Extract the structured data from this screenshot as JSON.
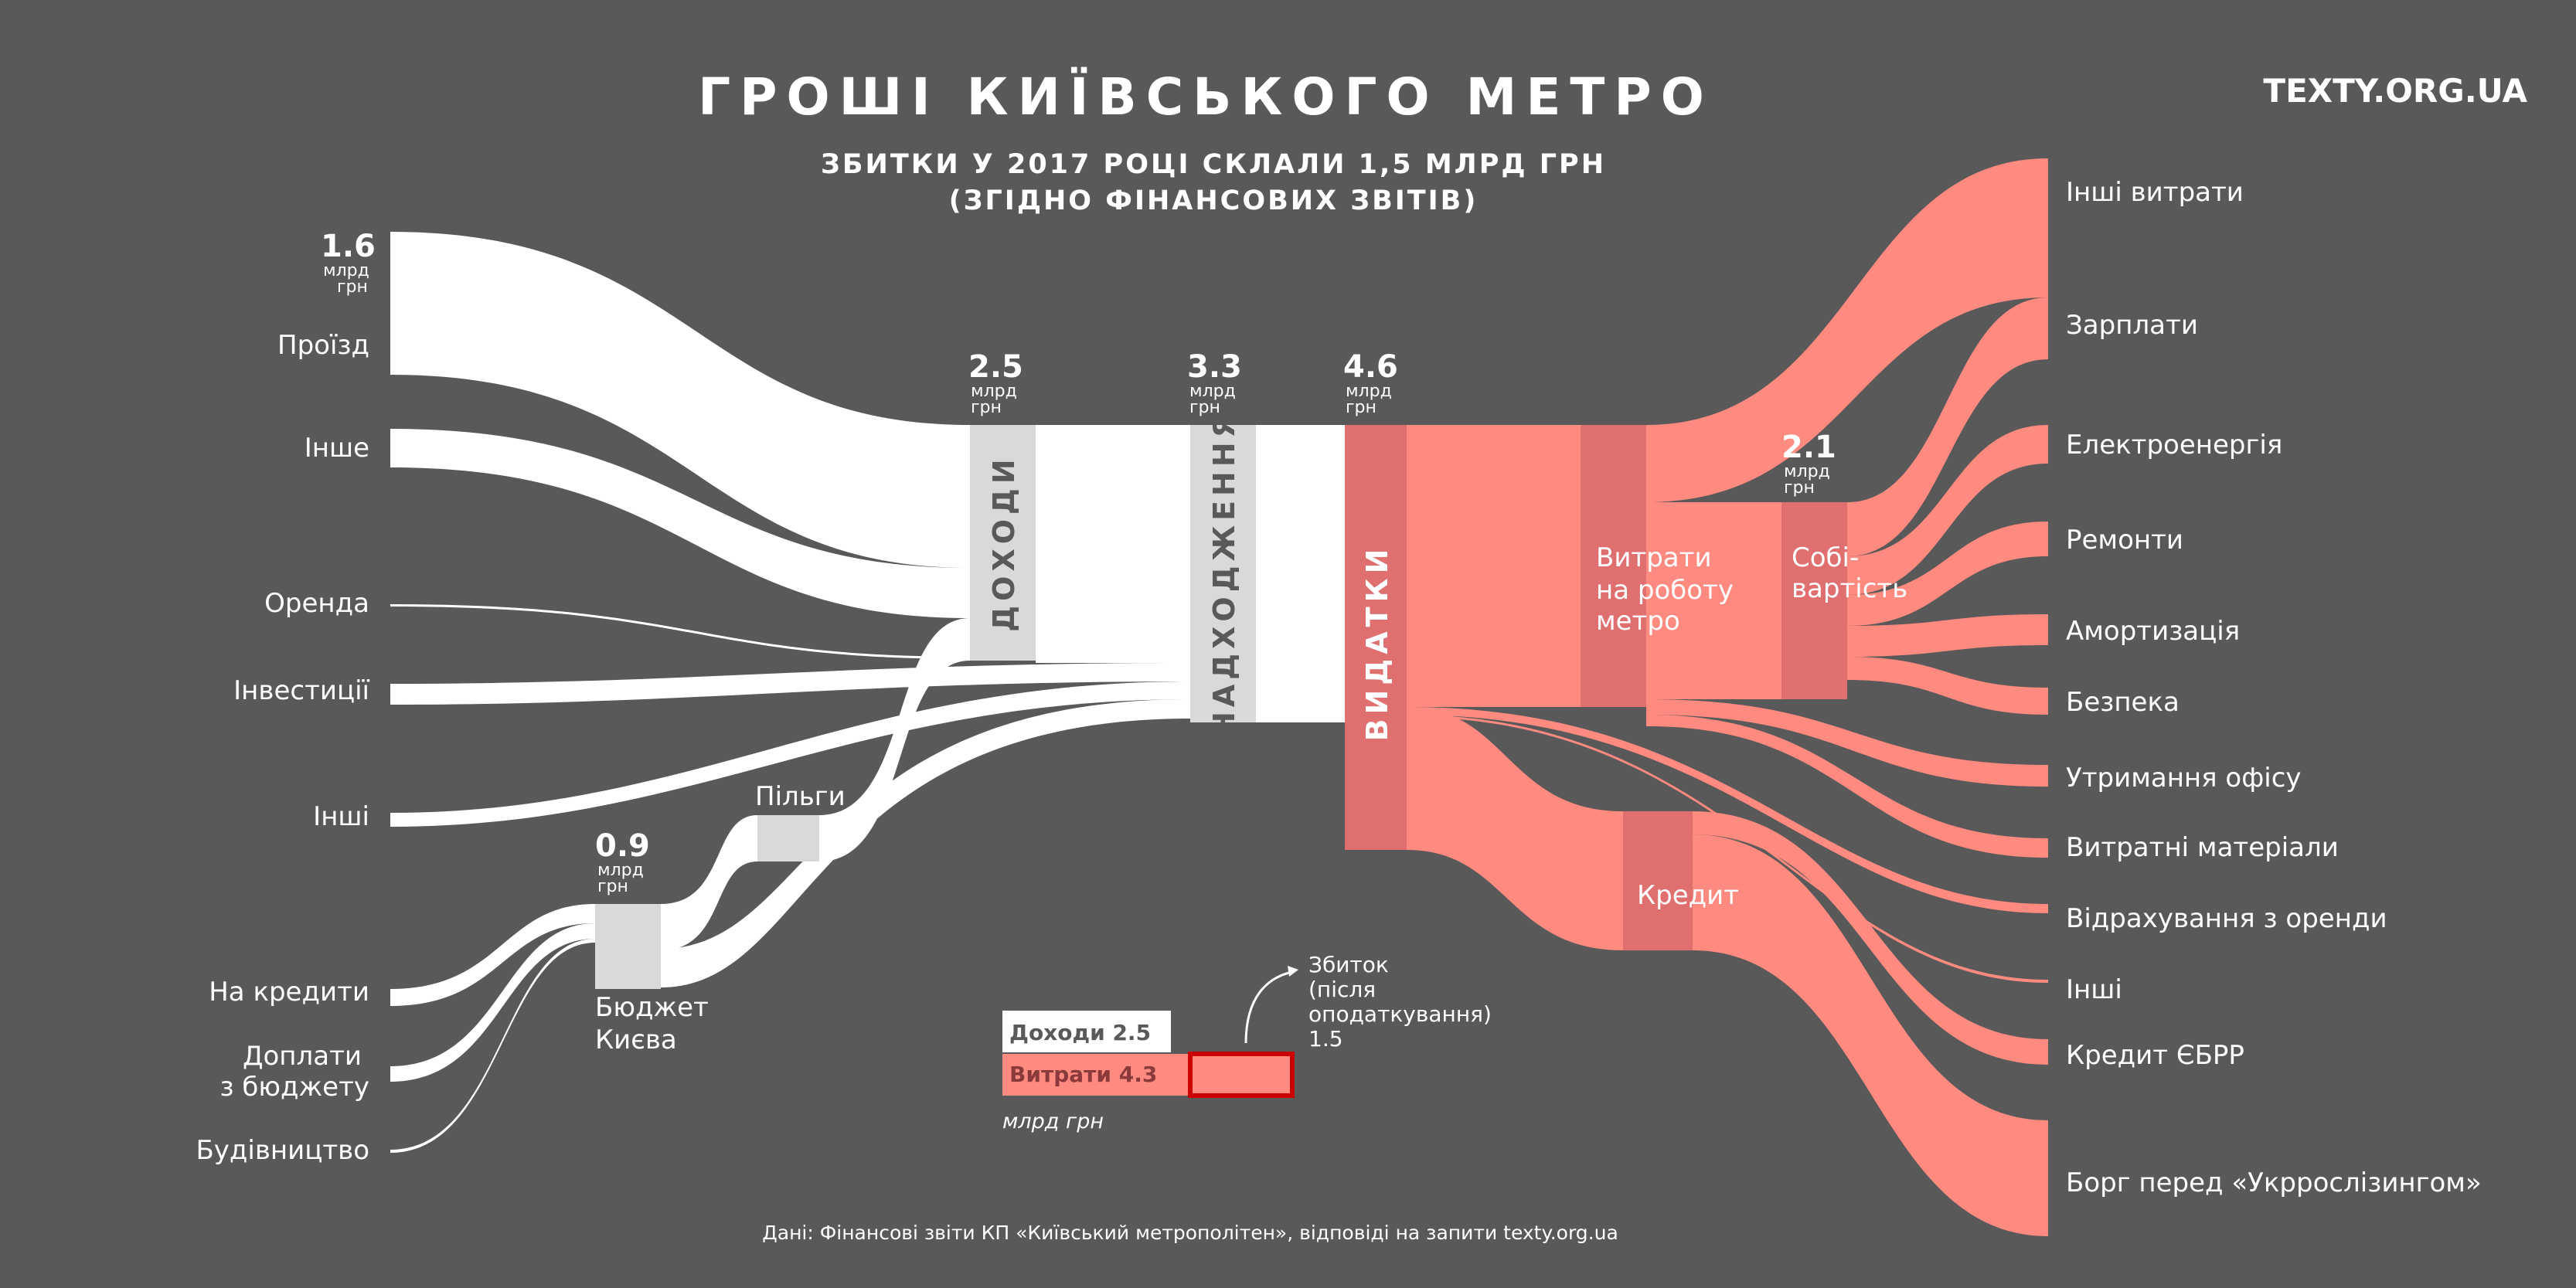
{
  "header": {
    "title": "ГРОШІ КИЇВСЬКОГО МЕТРО",
    "subtitle_line1": "ЗБИТКИ У 2017 РОЦІ СКЛАЛИ 1,5 МЛРД ГРН",
    "subtitle_line2": "(ЗГІДНО ФІНАНСОВИХ ЗВІТІВ)",
    "brand": "TEXTY.ORG.UA"
  },
  "unit_line1": "млрд",
  "unit_line2": "грн",
  "values": {
    "proizd": "1.6",
    "dohody": "2.5",
    "nadhodzhennia": "3.3",
    "vydatky": "4.6",
    "sobivartist": "2.1",
    "budzhet": "0.9"
  },
  "left_sources": {
    "proizd": "Проїзд",
    "inshe": "Інше",
    "orenda": "Оренда",
    "investytsii": "Інвестиції",
    "inshi": "Інші",
    "na_kredyty": "На кредити",
    "doplaty_1": "Доплати",
    "doplaty_2": "з бюджету",
    "budivnytstvo": "Будівництво"
  },
  "nodes": {
    "dohody": "ДОХОДИ",
    "nadhodzhennia": "НАДХОДЖЕННЯ",
    "vydatky": "ВИДАТКИ",
    "pilgy": "Пільги",
    "budzhet_1": "Бюджет",
    "budzhet_2": "Києва",
    "vytraty_1": "Витрати",
    "vytraty_2": "на роботу",
    "vytraty_3": "метро",
    "sobi_1": "Собі-",
    "sobi_2": "вартість",
    "kredyt": "Кредит"
  },
  "right_targets": {
    "inshi_vytraty": "Інші витрати",
    "zarplaty": "Зарплати",
    "elektro": "Електроенергія",
    "remonty": "Ремонти",
    "amortyzatsiia": "Амортизація",
    "bezpeka": "Безпека",
    "ofis": "Утримання офісу",
    "materialy": "Витратні матеріали",
    "vidrakhuvannia": "Відрахування з оренди",
    "inshi": "Інші",
    "kredyt_ebrr": "Кредит ЄБРР",
    "borh": "Борг перед «Укррослізингом»"
  },
  "legend": {
    "income": "Доходи 2.5",
    "expenses": "Витрати 4.3",
    "units": "млрд грн",
    "loss_1": "Збиток",
    "loss_2": "(після",
    "loss_3": "оподаткування)",
    "loss_4": "1.5"
  },
  "footer": "Дані: Фінансові звіти КП «Київський метрополітен»,  відповіді на запити texty.org.ua",
  "colors": {
    "background": "#595959",
    "income_flow": "#ffffff",
    "income_node": "#d9d9d9",
    "expense_flow": "#ff8a80",
    "expense_node": "#e07070",
    "loss_box": "#cc0000"
  }
}
